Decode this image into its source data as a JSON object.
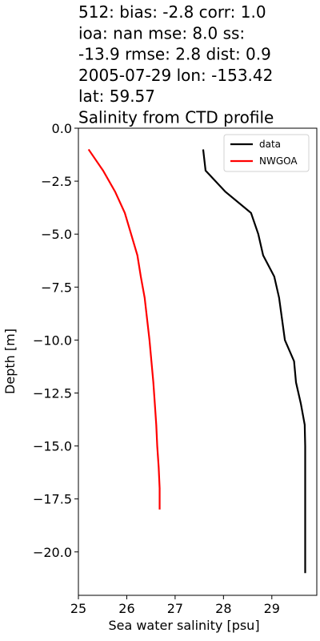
{
  "chart_data": {
    "type": "line",
    "title_lines": [
      "512: bias: -2.8  corr: 1.0",
      "ioa: nan  mse: 8.0  ss:",
      "-13.9  rmse: 2.8  dist: 0.9",
      "2005-07-29 lon: -153.42",
      "lat: 59.57",
      "Salinity from CTD profile"
    ],
    "xlabel": "Sea water salinity [psu]",
    "ylabel": "Depth [m]",
    "xlim": [
      25,
      29.93
    ],
    "ylim": [
      -22.05,
      0
    ],
    "xticks": [
      25,
      26,
      27,
      28,
      29
    ],
    "yticks": [
      {
        "value": 0,
        "label": "0.0"
      },
      {
        "value": -2.5,
        "label": "−2.5"
      },
      {
        "value": -5,
        "label": "−5.0"
      },
      {
        "value": -7.5,
        "label": "−7.5"
      },
      {
        "value": -10,
        "label": "−10.0"
      },
      {
        "value": -12.5,
        "label": "−12.5"
      },
      {
        "value": -15,
        "label": "−15.0"
      },
      {
        "value": -17.5,
        "label": "−17.5"
      },
      {
        "value": -20,
        "label": "−20.0"
      }
    ],
    "legend": "upper right",
    "series": [
      {
        "name": "data",
        "color": "#000000",
        "x": [
          27.58,
          27.63,
          28.04,
          28.57,
          28.72,
          28.82,
          29.05,
          29.15,
          29.21,
          29.27,
          29.46,
          29.5,
          29.6,
          29.68,
          29.69,
          29.69,
          29.69,
          29.69,
          29.69,
          29.69,
          29.69
        ],
        "y": [
          -1,
          -2,
          -3,
          -4,
          -5,
          -6,
          -7,
          -8,
          -9,
          -10,
          -11,
          -12,
          -13,
          -14,
          -15,
          -16,
          -17,
          -18,
          -19,
          -20,
          -21
        ]
      },
      {
        "name": "NWGOA",
        "color": "#ff0000",
        "x": [
          25.21,
          25.51,
          25.76,
          25.96,
          26.09,
          26.22,
          26.29,
          26.37,
          26.42,
          26.47,
          26.51,
          26.55,
          26.58,
          26.61,
          26.63,
          26.66,
          26.68,
          26.68
        ],
        "y": [
          -1,
          -2,
          -3,
          -4,
          -5,
          -6,
          -7,
          -8,
          -9,
          -10,
          -11,
          -12,
          -13,
          -14,
          -15,
          -16,
          -17,
          -18
        ]
      }
    ]
  }
}
